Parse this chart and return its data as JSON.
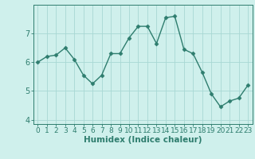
{
  "x": [
    0,
    1,
    2,
    3,
    4,
    5,
    6,
    7,
    8,
    9,
    10,
    11,
    12,
    13,
    14,
    15,
    16,
    17,
    18,
    19,
    20,
    21,
    22,
    23
  ],
  "y": [
    6.0,
    6.2,
    6.25,
    6.5,
    6.1,
    5.55,
    5.25,
    5.55,
    6.3,
    6.3,
    6.85,
    7.25,
    7.25,
    6.65,
    7.55,
    7.6,
    6.45,
    6.3,
    5.65,
    4.9,
    4.45,
    4.65,
    4.75,
    5.2
  ],
  "line_color": "#2e7d6e",
  "marker": "D",
  "marker_size": 2.5,
  "line_width": 1.0,
  "xlabel": "Humidex (Indice chaleur)",
  "xlim": [
    -0.5,
    23.5
  ],
  "ylim": [
    3.85,
    8.0
  ],
  "yticks": [
    4,
    5,
    6,
    7
  ],
  "xticks": [
    0,
    1,
    2,
    3,
    4,
    5,
    6,
    7,
    8,
    9,
    10,
    11,
    12,
    13,
    14,
    15,
    16,
    17,
    18,
    19,
    20,
    21,
    22,
    23
  ],
  "bg_color": "#cff0ec",
  "grid_color": "#a8d8d4",
  "tick_color": "#2e7d6e",
  "xlabel_fontsize": 7.5,
  "tick_fontsize": 6.5
}
